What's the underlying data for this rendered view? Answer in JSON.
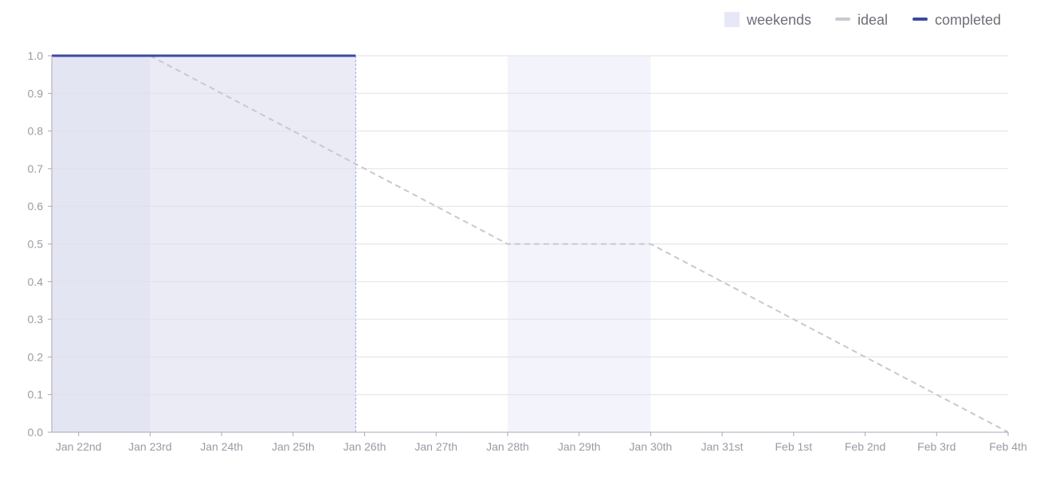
{
  "chart_data": {
    "type": "line",
    "title": "",
    "xlabel": "",
    "ylabel": "",
    "x_ticks": [
      "Jan 22nd",
      "Jan 23rd",
      "Jan 24th",
      "Jan 25th",
      "Jan 26th",
      "Jan 27th",
      "Jan 28th",
      "Jan 29th",
      "Jan 30th",
      "Jan 31st",
      "Feb 1st",
      "Feb 2nd",
      "Feb 3rd",
      "Feb 4th"
    ],
    "x_range": [
      "2024-01-21T15:00",
      "2024-02-04T00:00"
    ],
    "y_ticks": [
      "0.0",
      "0.1",
      "0.2",
      "0.3",
      "0.4",
      "0.5",
      "0.6",
      "0.7",
      "0.8",
      "0.9",
      "1.0"
    ],
    "ylim": [
      0,
      1
    ],
    "grid": "horizontal",
    "legend": {
      "position": "top-right",
      "items": [
        {
          "label": "weekends",
          "kind": "area",
          "color": "#e6e8f7"
        },
        {
          "label": "ideal",
          "kind": "line",
          "color": "#c8c8cf"
        },
        {
          "label": "completed",
          "kind": "line",
          "color": "#3b4a9e"
        }
      ]
    },
    "weekends": [
      {
        "start": "2024-01-28T00:00",
        "end": "2024-01-30T00:00"
      },
      {
        "start": "2024-02-04T00:00",
        "end": "2024-02-04T00:00"
      }
    ],
    "highlight": {
      "start": "2024-01-21T15:00",
      "end": "2024-01-25T21:00"
    },
    "series": [
      {
        "name": "ideal",
        "style": "dashed",
        "color": "#c8c8cf",
        "points": [
          {
            "x": "2024-01-23T00:00",
            "y": 1.0
          },
          {
            "x": "2024-01-28T00:00",
            "y": 0.5
          },
          {
            "x": "2024-01-30T00:00",
            "y": 0.5
          },
          {
            "x": "2024-02-04T00:00",
            "y": 0.0
          }
        ]
      },
      {
        "name": "completed",
        "style": "solid",
        "color": "#3b4a9e",
        "points": [
          {
            "x": "2024-01-21T15:00",
            "y": 1.0
          },
          {
            "x": "2024-01-25T21:00",
            "y": 1.0
          }
        ]
      }
    ]
  }
}
